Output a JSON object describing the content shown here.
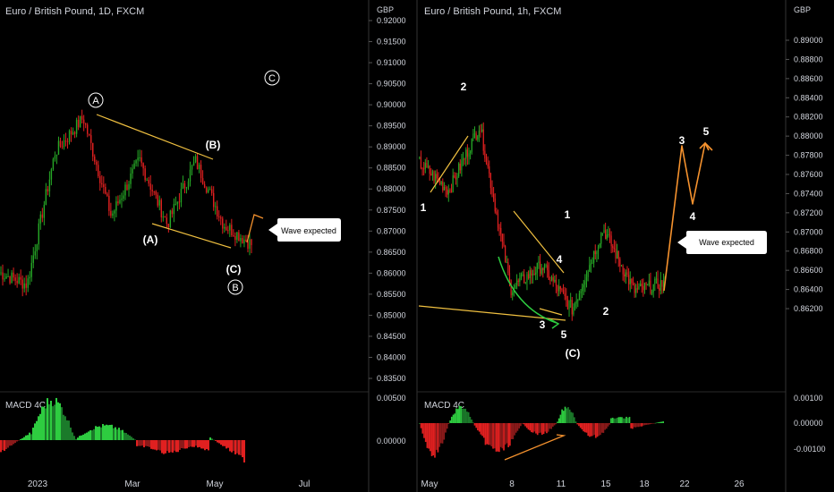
{
  "colors": {
    "background": "#000000",
    "bull": "#26a626",
    "bear": "#e02020",
    "wave_yellow": "#f0c040",
    "projection_orange": "#f5922e",
    "green_arc": "#2ecc40",
    "axis_text": "#d1d4dc",
    "white": "#ffffff"
  },
  "left_panel": {
    "title": "Euro / British Pound, 1D, FXCM",
    "macd_label": "MACD 4C",
    "price_axis": {
      "currency": "GBP",
      "ticks": [
        "0.92000",
        "0.91500",
        "0.91000",
        "0.90500",
        "0.90000",
        "0.89500",
        "0.89000",
        "0.88500",
        "0.88000",
        "0.87500",
        "0.87000",
        "0.86500",
        "0.86000",
        "0.85500",
        "0.85000",
        "0.84500",
        "0.84000",
        "0.83500"
      ]
    },
    "macd_axis": {
      "ticks": [
        "0.00500",
        "0.00000"
      ]
    },
    "time_axis": [
      "2023",
      "Mar",
      "May",
      "Jul"
    ],
    "wave_labels": {
      "A_circ": "A",
      "C_circ": "C",
      "B_circ": "B",
      "B_paren": "(B)",
      "A_paren": "(A)",
      "C_paren": "(C)"
    },
    "callout": "Wave expected"
  },
  "right_panel": {
    "title": "Euro / British Pound, 1h, FXCM",
    "macd_label": "MACD 4C",
    "price_axis": {
      "currency": "GBP",
      "ticks": [
        "0.89000",
        "0.88800",
        "0.88600",
        "0.88400",
        "0.88200",
        "0.88000",
        "0.87800",
        "0.87600",
        "0.87400",
        "0.87200",
        "0.87000",
        "0.86800",
        "0.86600",
        "0.86400",
        "0.86200"
      ]
    },
    "macd_axis": {
      "ticks": [
        "0.00100",
        "0.00000",
        "-0.00100"
      ]
    },
    "time_axis": [
      "May",
      "8",
      "11",
      "15",
      "18",
      "22",
      "26"
    ],
    "wave_labels": {
      "w1a": "1",
      "w2a": "2",
      "w3a": "3",
      "w4a": "4",
      "w5a": "5",
      "C_paren": "(C)",
      "w1b": "1",
      "w2b": "2",
      "w3b": "3",
      "w4b": "4",
      "w5b": "5"
    },
    "callout": "Wave expected"
  },
  "chart_data": [
    {
      "type": "candlestick",
      "title": "Euro / British Pound, 1D, FXCM",
      "y_unit": "GBP",
      "ylim": [
        0.833,
        0.922
      ],
      "x_ticks": [
        "2023",
        "Mar",
        "May",
        "Jul"
      ],
      "approx_close_path": [
        {
          "label": "start",
          "value": 0.86
        },
        {
          "label": "Jan low",
          "value": 0.857
        },
        {
          "label": "Jan high",
          "value": 0.89
        },
        {
          "label": "(A) top",
          "value": 0.8985
        },
        {
          "label": "Feb low",
          "value": 0.874
        },
        {
          "label": "Mar",
          "value": 0.888
        },
        {
          "label": "(A)",
          "value": 0.872
        },
        {
          "label": "(B)",
          "value": 0.8878
        },
        {
          "label": "May",
          "value": 0.872
        },
        {
          "label": "(C)",
          "value": 0.867
        }
      ],
      "indicator": "MACD 4C",
      "macd_ylim": [
        -0.003,
        0.006
      ]
    },
    {
      "type": "candlestick",
      "title": "Euro / British Pound, 1h, FXCM",
      "y_unit": "GBP",
      "ylim": [
        0.86,
        0.891
      ],
      "x_ticks": [
        "May",
        "8",
        "11",
        "15",
        "18",
        "22",
        "26"
      ],
      "approx_close_path": [
        {
          "label": "start",
          "value": 0.879
        },
        {
          "label": "1",
          "value": 0.8765
        },
        {
          "label": "2",
          "value": 0.8822
        },
        {
          "label": "3",
          "value": 0.868
        },
        {
          "label": "4",
          "value": 0.87
        },
        {
          "label": "5",
          "value": 0.8662
        },
        {
          "label": "1",
          "value": 0.8732
        },
        {
          "label": "2",
          "value": 0.8678
        },
        {
          "label": "last",
          "value": 0.8685
        }
      ],
      "projection": [
        0.8685,
        0.8795,
        0.8752,
        0.8803
      ],
      "indicator": "MACD 4C",
      "macd_ylim": [
        -0.0013,
        0.0013
      ]
    }
  ]
}
